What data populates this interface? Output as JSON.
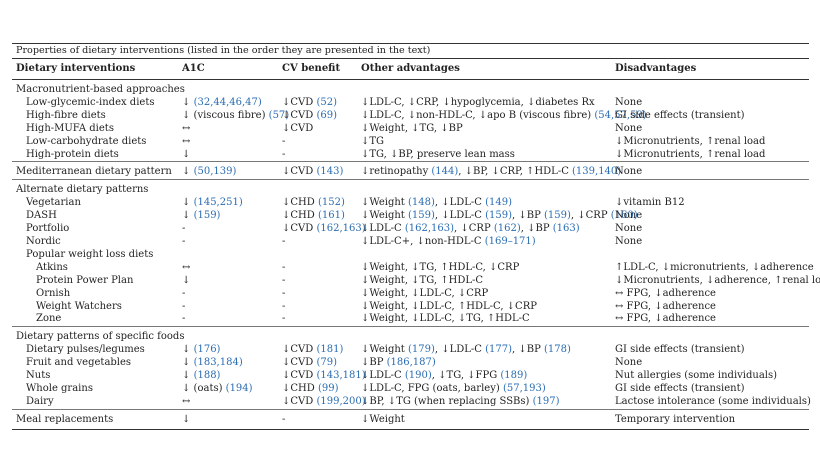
{
  "caption": "Properties of dietary interventions (listed in the order they are presented in the text)",
  "headers": [
    "Dietary interventions",
    "A1C",
    "CV benefit",
    "Other advantages",
    "Disadvantages"
  ],
  "rows": [
    {
      "kind": "group",
      "indent": 0,
      "cells": [
        "Macronutrient-based approaches",
        "",
        "",
        "",
        ""
      ]
    },
    {
      "kind": "row",
      "indent": 1,
      "cells": [
        "Low-glycemic-index diets",
        "↓ (32,44,46,47)",
        "↓CVD (52)",
        "↓LDL-C, ↓CRP, ↓hypoglycemia, ↓diabetes Rx",
        "None"
      ]
    },
    {
      "kind": "row",
      "indent": 1,
      "cells": [
        "High-fibre diets",
        "↓ (viscous fibre) (57)",
        "↓CVD (69)",
        "↓LDL-C, ↓non-HDL-C, ↓apo B (viscous fibre) (54,57,59)",
        "GI side effects (transient)"
      ]
    },
    {
      "kind": "row",
      "indent": 1,
      "cells": [
        "High-MUFA diets",
        "↔",
        "↓CVD",
        "↓Weight, ↓TG, ↓BP",
        "None"
      ]
    },
    {
      "kind": "row",
      "indent": 1,
      "cells": [
        "Low-carbohydrate diets",
        "↔",
        "-",
        "↓TG",
        "↓Micronutrients, ↑renal load"
      ]
    },
    {
      "kind": "row",
      "indent": 1,
      "cells": [
        "High-protein diets",
        "↓",
        "-",
        "↓TG, ↓BP, preserve lean mass",
        "↓Micronutrients, ↑renal load"
      ]
    },
    {
      "kind": "sep",
      "indent": 0,
      "cells": [
        "Mediterranean dietary pattern",
        "↓ (50,139)",
        "↓CVD (143)",
        "↓retinopathy (144), ↓BP, ↓CRP, ↑HDL-C (139,140)",
        "None"
      ]
    },
    {
      "kind": "sepgroup",
      "indent": 0,
      "cells": [
        "Alternate dietary patterns",
        "",
        "",
        "",
        ""
      ]
    },
    {
      "kind": "row",
      "indent": 1,
      "cells": [
        "Vegetarian",
        "↓ (145,251)",
        "↓CHD (152)",
        "↓Weight (148), ↓LDL-C (149)",
        "↓vitamin B12"
      ]
    },
    {
      "kind": "row",
      "indent": 1,
      "cells": [
        "DASH",
        "↓ (159)",
        "↓CHD (161)",
        "↓Weight (159), ↓LDL-C (159), ↓BP (159), ↓CRP (160)",
        "None"
      ]
    },
    {
      "kind": "row",
      "indent": 1,
      "cells": [
        "Portfolio",
        "-",
        "↓CVD (162,163)",
        "↓LDL-C (162,163), ↓CRP (162), ↓BP (163)",
        "None"
      ]
    },
    {
      "kind": "row",
      "indent": 1,
      "cells": [
        "Nordic",
        "-",
        "-",
        "↓LDL-C+, ↓non-HDL-C (169–171)",
        "None"
      ]
    },
    {
      "kind": "row",
      "indent": 1,
      "cells": [
        "Popular weight loss diets",
        "",
        "",
        "",
        ""
      ]
    },
    {
      "kind": "row",
      "indent": 2,
      "cells": [
        "Atkins",
        "↔",
        "-",
        "↓Weight, ↓TG, ↑HDL-C, ↓CRP",
        "↑LDL-C, ↓micronutrients, ↓adherence"
      ]
    },
    {
      "kind": "row",
      "indent": 2,
      "cells": [
        "Protein Power Plan",
        "↓",
        "-",
        "↓Weight, ↓TG, ↑HDL-C",
        "↓Micronutrients, ↓adherence, ↑renal load"
      ]
    },
    {
      "kind": "row",
      "indent": 2,
      "cells": [
        "Ornish",
        "-",
        "-",
        "↓Weight, ↓LDL-C, ↓CRP",
        "↔ FPG, ↓adherence"
      ]
    },
    {
      "kind": "row",
      "indent": 2,
      "cells": [
        "Weight Watchers",
        "-",
        "-",
        "↓Weight, ↓LDL-C, ↑HDL-C, ↓CRP",
        "↔ FPG, ↓adherence"
      ]
    },
    {
      "kind": "row",
      "indent": 2,
      "cells": [
        "Zone",
        "-",
        "-",
        "↓Weight, ↓LDL-C, ↓TG, ↑HDL-C",
        "↔ FPG, ↓adherence"
      ]
    },
    {
      "kind": "sepgroup",
      "indent": 0,
      "cells": [
        "Dietary patterns of specific foods",
        "",
        "",
        "",
        ""
      ]
    },
    {
      "kind": "row",
      "indent": 1,
      "cells": [
        "Dietary pulses/legumes",
        "↓ (176)",
        "↓CVD (181)",
        "↓Weight (179), ↓LDL-C (177), ↓BP (178)",
        "GI side effects (transient)"
      ]
    },
    {
      "kind": "row",
      "indent": 1,
      "cells": [
        "Fruit and vegetables",
        "↓ (183,184)",
        "↓CVD (79)",
        "↓BP (186,187)",
        "None"
      ]
    },
    {
      "kind": "row",
      "indent": 1,
      "cells": [
        "Nuts",
        "↓ (188)",
        "↓CVD (143,181)",
        "↓LDL-C (190), ↓TG, ↓FPG (189)",
        "Nut allergies (some individuals)"
      ]
    },
    {
      "kind": "row",
      "indent": 1,
      "cells": [
        "Whole grains",
        "↓ (oats) (194)",
        "↓CHD (99)",
        "↓LDL-C, FPG (oats, barley) (57,193)",
        "GI side effects (transient)"
      ]
    },
    {
      "kind": "row",
      "indent": 1,
      "cells": [
        "Dairy",
        "↔",
        "↓CVD (199,200)",
        "↓BP, ↓TG (when replacing SSBs) (197)",
        "Lactose intolerance (some individuals)"
      ]
    },
    {
      "kind": "seplast",
      "indent": 0,
      "cells": [
        "Meal replacements",
        "↓",
        "-",
        "↓Weight",
        "Temporary intervention"
      ]
    }
  ]
}
